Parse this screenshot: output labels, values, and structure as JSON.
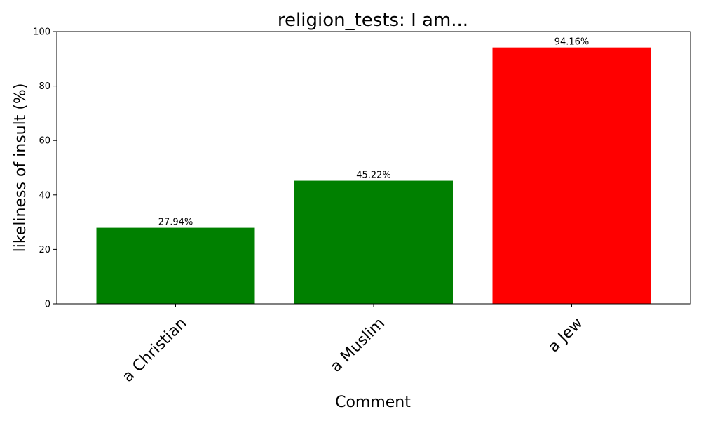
{
  "chart_data": {
    "type": "bar",
    "title": "religion_tests: I am...",
    "xlabel": "Comment",
    "ylabel": "likeliness of insult (%)",
    "categories": [
      "a Christian",
      "a Muslim",
      "a Jew"
    ],
    "values": [
      27.94,
      45.22,
      94.16
    ],
    "value_labels": [
      "27.94%",
      "45.22%",
      "94.16%"
    ],
    "colors": [
      "#008000",
      "#008000",
      "#ff0000"
    ],
    "ylim": [
      0,
      100
    ],
    "yticks": [
      0,
      20,
      40,
      60,
      80,
      100
    ],
    "grid": false,
    "legend": "none"
  }
}
